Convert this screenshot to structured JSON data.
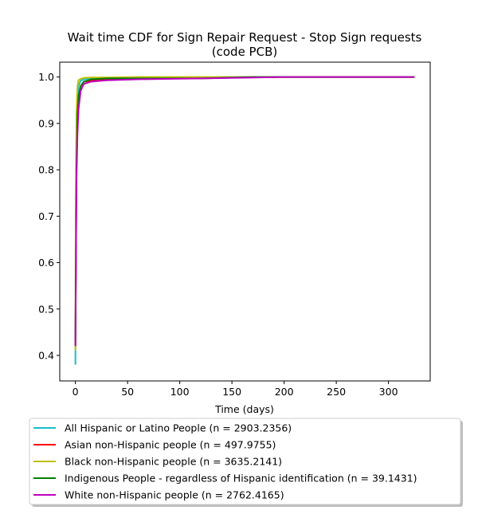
{
  "chart_data": {
    "type": "line",
    "title_line1": "Wait time CDF for Sign Repair Request - Stop Sign  requests",
    "title_line2": "(code PCB)",
    "xlabel": "Time (days)",
    "ylabel": "",
    "xlim": [
      -15,
      340
    ],
    "ylim": [
      0.345,
      1.032
    ],
    "x_ticks": [
      0,
      50,
      100,
      150,
      200,
      250,
      300
    ],
    "y_ticks": [
      0.4,
      0.5,
      0.6,
      0.7,
      0.8,
      0.9,
      1.0
    ],
    "x_tick_labels": [
      "0",
      "50",
      "100",
      "150",
      "200",
      "250",
      "300"
    ],
    "y_tick_labels": [
      "0.4",
      "0.5",
      "0.6",
      "0.7",
      "0.8",
      "0.9",
      "1.0"
    ],
    "grid": false,
    "legend_position": "below plot",
    "series": [
      {
        "name": "All Hispanic or Latino People (n = 2903.2356)",
        "color": "#17becf",
        "x": [
          0,
          0.3,
          1,
          2,
          3,
          5,
          8,
          15,
          30,
          60,
          120,
          200,
          325
        ],
        "y": [
          0.38,
          0.6,
          0.85,
          0.95,
          0.98,
          0.992,
          0.995,
          0.997,
          0.998,
          0.999,
          0.9995,
          1.0,
          1.0
        ]
      },
      {
        "name": "Asian non-Hispanic people (n = 497.9755)",
        "color": "#ff0000",
        "x": [
          0,
          0.5,
          1,
          2,
          3,
          5,
          8,
          15,
          30,
          60,
          120,
          200,
          325
        ],
        "y": [
          0.42,
          0.62,
          0.8,
          0.9,
          0.95,
          0.98,
          0.99,
          0.992,
          0.995,
          0.997,
          0.998,
          1.0,
          1.0
        ]
      },
      {
        "name": "Black non-Hispanic people (n = 3635.2141)",
        "color": "#bfbf00",
        "x": [
          0,
          0.3,
          1,
          2,
          3,
          5,
          8,
          15,
          30,
          60,
          120,
          200,
          325
        ],
        "y": [
          0.41,
          0.7,
          0.92,
          0.98,
          0.993,
          0.996,
          0.998,
          0.999,
          0.999,
          1.0,
          1.0,
          1.0,
          1.0
        ]
      },
      {
        "name": "Indigenous People - regardless of Hispanic identification (n = 39.1431)",
        "color": "#008000",
        "x": [
          0,
          0.5,
          1,
          2,
          3,
          5,
          8,
          15,
          30,
          60,
          120,
          170,
          325
        ],
        "y": [
          0.43,
          0.6,
          0.8,
          0.92,
          0.96,
          0.98,
          0.99,
          0.995,
          0.997,
          0.997,
          0.997,
          1.0,
          1.0
        ]
      },
      {
        "name": "White non-Hispanic people (n = 2762.4165)",
        "color": "#bf00bf",
        "x": [
          0,
          0.5,
          1,
          2,
          3,
          5,
          8,
          15,
          30,
          60,
          120,
          200,
          325
        ],
        "y": [
          0.42,
          0.6,
          0.78,
          0.88,
          0.93,
          0.97,
          0.985,
          0.99,
          0.993,
          0.995,
          0.997,
          1.0,
          1.0
        ]
      }
    ]
  }
}
